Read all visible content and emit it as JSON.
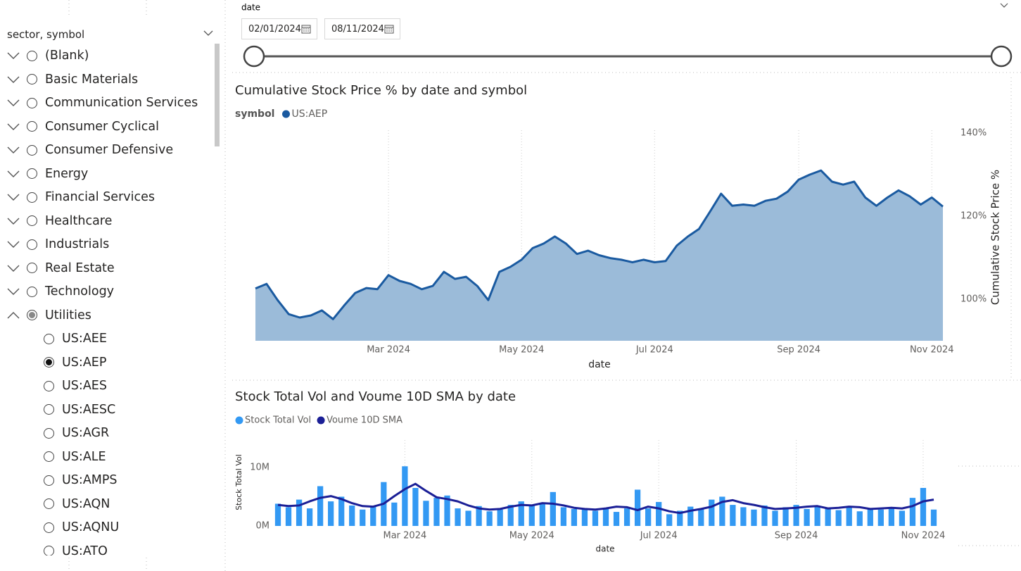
{
  "slicer": {
    "title": "sector, symbol",
    "sectors": [
      "(Blank)",
      "Basic Materials",
      "Communication Services",
      "Consumer Cyclical",
      "Consumer Defensive",
      "Energy",
      "Financial Services",
      "Healthcare",
      "Industrials",
      "Real Estate",
      "Technology",
      "Utilities"
    ],
    "symbols": [
      "US:AEE",
      "US:AEP",
      "US:AES",
      "US:AESC",
      "US:AGR",
      "US:ALE",
      "US:AMPS",
      "US:AQN",
      "US:AQNU",
      "US:ATO"
    ]
  },
  "date_slicer": {
    "label": "date",
    "start": "02/01/2024",
    "end": "08/11/2024"
  },
  "chart_data": [
    {
      "type": "area",
      "title": "Cumulative Stock Price % by date and symbol",
      "legend_title": "symbol",
      "legend_position": "top-left",
      "x_label": "date",
      "y_label": "Cumulative Stock Price %",
      "y_axis_side": "right",
      "x_grid": true,
      "categories": [
        null,
        null,
        null,
        null,
        null,
        null,
        null,
        null,
        null,
        null,
        null,
        null,
        "Mar 2024",
        null,
        null,
        null,
        null,
        null,
        null,
        null,
        null,
        null,
        null,
        null,
        "May 2024",
        null,
        null,
        null,
        null,
        null,
        null,
        null,
        null,
        null,
        null,
        null,
        "Jul 2024",
        null,
        null,
        null,
        null,
        null,
        null,
        null,
        null,
        null,
        null,
        null,
        null,
        "Sep 2024",
        null,
        null,
        null,
        null,
        null,
        null,
        null,
        null,
        null,
        null,
        null,
        "Nov 2024",
        null
      ],
      "series": [
        {
          "name": "US:AEP",
          "color": "#1a5aa0",
          "fill": "#9bbbd9",
          "values": [
            102.6,
            103.7,
            99.8,
            96.4,
            95.6,
            96.1,
            97.3,
            95.2,
            98.5,
            101.5,
            102.7,
            102.4,
            105.8,
            104.4,
            103.7,
            102.4,
            103.2,
            106.6,
            104.9,
            105.4,
            103.2,
            99.8,
            106.6,
            107.8,
            109.5,
            112.3,
            113.4,
            115.1,
            113.4,
            110.9,
            111.7,
            110.6,
            109.9,
            109.5,
            108.9,
            109.5,
            108.9,
            109.2,
            112.9,
            115.1,
            116.9,
            121.1,
            125.4,
            122.5,
            122.8,
            122.5,
            123.7,
            124.2,
            125.9,
            128.8,
            130.0,
            131.0,
            128.3,
            127.6,
            128.3,
            124.5,
            122.5,
            124.5,
            126.2,
            124.8,
            122.8,
            124.5,
            122.3
          ]
        }
      ],
      "ylim": [
        90,
        140
      ],
      "yticks": [
        {
          "value": 100,
          "label": "100%"
        },
        {
          "value": 120,
          "label": "120%"
        },
        {
          "value": 140,
          "label": "140%"
        }
      ]
    },
    {
      "type": "bar",
      "title": "Stock Total Vol and Voume 10D SMA by date",
      "legend_position": "top-left",
      "x_label": "date",
      "y_label": "Stock Total Vol",
      "y_axis_side": "left",
      "x_grid": true,
      "categories": [
        null,
        null,
        null,
        null,
        null,
        null,
        null,
        null,
        null,
        null,
        null,
        null,
        "Mar 2024",
        null,
        null,
        null,
        null,
        null,
        null,
        null,
        null,
        null,
        null,
        null,
        "May 2024",
        null,
        null,
        null,
        null,
        null,
        null,
        null,
        null,
        null,
        null,
        null,
        "Jul 2024",
        null,
        null,
        null,
        null,
        null,
        null,
        null,
        null,
        null,
        null,
        null,
        null,
        "Sep 2024",
        null,
        null,
        null,
        null,
        null,
        null,
        null,
        null,
        null,
        null,
        null,
        "Nov 2024",
        null
      ],
      "series": [
        {
          "name": "Stock Total Vol",
          "type": "bar",
          "color": "#3399f3",
          "values": [
            3800000,
            3200000,
            4500000,
            3000000,
            6800000,
            4200000,
            5000000,
            3500000,
            2800000,
            3400000,
            7500000,
            4000000,
            10200000,
            6500000,
            4300000,
            4800000,
            5200000,
            3000000,
            2600000,
            3400000,
            2500000,
            2800000,
            3600000,
            4200000,
            3500000,
            3800000,
            5800000,
            3200000,
            2900000,
            3000000,
            2600000,
            3100000,
            2400000,
            3000000,
            6200000,
            3000000,
            4100000,
            2000000,
            2600000,
            3300000,
            3000000,
            4500000,
            5000000,
            3600000,
            3200000,
            2800000,
            3500000,
            2600000,
            3200000,
            3600000,
            2900000,
            3400000,
            3000000,
            2700000,
            3200000,
            2500000,
            3000000,
            2800000,
            3100000,
            2600000,
            4800000,
            6500000,
            2800000
          ]
        },
        {
          "name": "Voume 10D SMA",
          "type": "line",
          "color": "#1b1f96",
          "values": [
            3600000,
            3400000,
            3500000,
            4200000,
            4800000,
            5100000,
            4600000,
            3900000,
            3400000,
            3300000,
            3800000,
            5100000,
            6300000,
            7200000,
            6000000,
            4900000,
            4600000,
            4200000,
            3500000,
            3000000,
            2800000,
            2900000,
            3300000,
            3600000,
            3500000,
            3900000,
            3800000,
            3500000,
            3100000,
            2900000,
            2800000,
            3000000,
            3300000,
            3200000,
            2700000,
            3300000,
            3000000,
            2500000,
            2200000,
            2600000,
            2900000,
            3300000,
            4100000,
            4400000,
            3900000,
            3600000,
            3200000,
            2900000,
            3000000,
            3100000,
            3300000,
            3400000,
            3000000,
            3100000,
            3300000,
            3200000,
            2900000,
            3000000,
            3100000,
            3000000,
            3400000,
            4200000,
            4500000
          ]
        }
      ],
      "ylim": [
        0,
        13000000
      ],
      "yticks": [
        {
          "value": 0,
          "label": "0M"
        },
        {
          "value": 10000000,
          "label": "10M"
        }
      ]
    }
  ]
}
